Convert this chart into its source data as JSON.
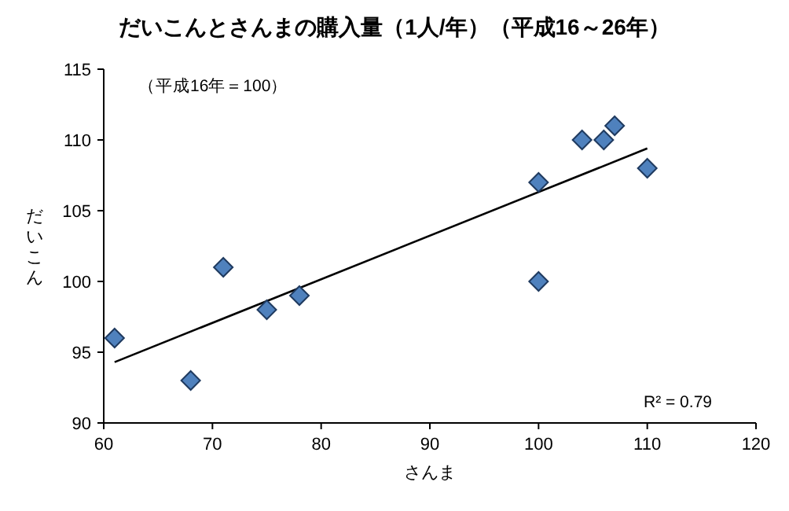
{
  "chart_data": {
    "type": "scatter",
    "title": "だいこんとさんまの購入量（1人/年）（平成16～26年）",
    "xlabel": "さんま",
    "ylabel": "だいこん",
    "xlim": [
      60,
      120
    ],
    "xticks": [
      60,
      70,
      80,
      90,
      100,
      110,
      120
    ],
    "ylim": [
      90,
      115
    ],
    "yticks": [
      90,
      95,
      100,
      105,
      110,
      115
    ],
    "grid": false,
    "marker": "diamond",
    "series": [
      {
        "color": "#4f81bd",
        "x": [
          61,
          68,
          71,
          75,
          78,
          100,
          100,
          104,
          106,
          107,
          110
        ],
        "values": [
          96,
          93,
          101,
          98,
          99,
          107,
          100,
          110,
          110,
          111,
          108
        ]
      },
      {
        "type": "line",
        "color": "#000000",
        "marker": "none",
        "x": [
          61,
          110
        ],
        "values": [
          94.3,
          109.4
        ]
      }
    ],
    "annotations": [
      "（平成16年＝100）",
      "R² = 0.79"
    ]
  }
}
